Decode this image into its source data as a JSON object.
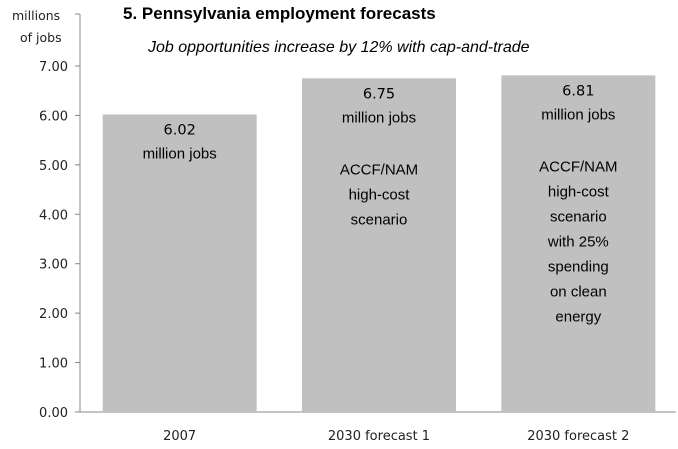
{
  "chart_data": {
    "type": "bar",
    "title": "5. Pennsylvania employment forecasts",
    "subtitle": "Job opportunities increase by 12% with cap-and-trade",
    "ylabel": [
      "millions",
      "of jobs"
    ],
    "ylim": [
      0,
      7
    ],
    "yticks": [
      "0.00",
      "1.00",
      "2.00",
      "3.00",
      "4.00",
      "5.00",
      "6.00",
      "7.00"
    ],
    "categories": [
      "2007",
      "2030 forecast 1",
      "2030 forecast 2"
    ],
    "values": [
      6.02,
      6.75,
      6.81
    ],
    "value_labels": [
      "6.02",
      "6.75",
      "6.81"
    ],
    "unit_label": "million jobs",
    "bar_color": "#c0c0c0",
    "annotations": [
      [],
      [
        "ACCF/NAM",
        "high-cost",
        "scenario"
      ],
      [
        "ACCF/NAM",
        "high-cost",
        "scenario",
        "with 25%",
        "spending",
        "on clean",
        "energy"
      ]
    ]
  }
}
